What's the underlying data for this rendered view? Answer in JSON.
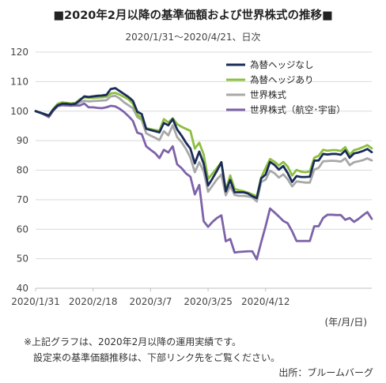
{
  "title": "■2020年2月以降の基準価額および世界株式の推移■",
  "subtitle": "2020/1/31～2020/4/21、日次",
  "x_unit": "(年/月/日)",
  "notes": [
    "※上記グラフは、2020年2月以降の運用実績です。",
    "設定来の基準価額推移は、下部リンク先をご覧ください。"
  ],
  "source": "出所：ブルームバーグ",
  "chart_data": {
    "type": "line",
    "ylim": [
      40,
      120
    ],
    "yticks": [
      40,
      50,
      60,
      70,
      80,
      90,
      100,
      110,
      120
    ],
    "xticks": [
      "2020/1/31",
      "2020/2/18",
      "2020/3/7",
      "2020/3/25",
      "2020/4/12"
    ],
    "grid": true,
    "legend_position": "top-right",
    "series": [
      {
        "name": "為替ヘッジなし",
        "color": "#1a2b57",
        "values": [
          100,
          99.5,
          99,
          98.5,
          100.5,
          102,
          102.5,
          102.5,
          102.3,
          102.5,
          103.7,
          105,
          104.8,
          105,
          105.2,
          105.3,
          105.5,
          107.5,
          107.8,
          106.8,
          105.8,
          104.8,
          103.5,
          99.8,
          99,
          94,
          93.6,
          93.2,
          92.8,
          96,
          95.2,
          97.3,
          93.8,
          91.7,
          89.3,
          87.3,
          82.3,
          86.3,
          82.2,
          74.8,
          77.2,
          79.8,
          82.7,
          72.8,
          76.7,
          72.5,
          72.5,
          72.5,
          72.1,
          71.2,
          70.5,
          77.2,
          78.5,
          82.8,
          81.8,
          80.2,
          81.4,
          79,
          76,
          78,
          77.7,
          77.7,
          77.8,
          83.2,
          83.3,
          85.5,
          85.3,
          85.5,
          85.5,
          85.2,
          86.7,
          84.2,
          85.7,
          86,
          86.5,
          87.2,
          86.1
        ]
      },
      {
        "name": "為替ヘッジあり",
        "color": "#8cbf3f",
        "values": [
          100,
          99.5,
          99,
          98.5,
          100.8,
          102.5,
          103,
          102.8,
          102.6,
          102.8,
          104,
          104.7,
          104.5,
          104.5,
          104.6,
          104.7,
          104.9,
          106,
          106.2,
          105.6,
          104.8,
          104,
          102.5,
          98.8,
          97.7,
          94.2,
          93.9,
          93.6,
          93.4,
          97.3,
          96.2,
          97.6,
          95.6,
          94.7,
          94,
          93.3,
          87.3,
          89.3,
          85.3,
          77,
          78.9,
          80.7,
          82.7,
          73.2,
          78.2,
          73.6,
          73.2,
          72.9,
          72.4,
          71.8,
          71.1,
          77.5,
          80.7,
          83.8,
          82.9,
          81.6,
          82.8,
          81.2,
          78.2,
          80.1,
          79.5,
          79.3,
          79.6,
          84.2,
          84.9,
          86.9,
          86.6,
          86.8,
          86.8,
          86.5,
          87.8,
          85.2,
          86.8,
          87.2,
          87.8,
          88.5,
          87.4
        ]
      },
      {
        "name": "世界株式",
        "color": "#a8a8a8",
        "values": [
          100,
          99.5,
          99,
          98.5,
          100.6,
          101.8,
          102.2,
          102,
          101.8,
          102,
          103,
          103.5,
          103.3,
          103.4,
          103.5,
          103.6,
          103.7,
          105,
          105.2,
          104.3,
          103,
          102,
          101,
          98,
          97,
          92.5,
          91.7,
          91,
          90.2,
          93.2,
          91.8,
          95.2,
          91.2,
          89.5,
          87.2,
          84.3,
          79.3,
          82.7,
          79.6,
          72.7,
          74.8,
          76.9,
          78.5,
          71.5,
          74.6,
          71.6,
          71.3,
          71.3,
          71.1,
          70.8,
          69.4,
          76,
          76.8,
          79.8,
          79,
          77.5,
          78.6,
          76.9,
          74.5,
          76.2,
          76,
          75.8,
          75.8,
          80.2,
          80.8,
          83,
          83.1,
          83.2,
          83.1,
          82.9,
          84,
          81.7,
          82.7,
          83,
          83.4,
          84,
          83.3
        ]
      },
      {
        "name": "世界株式（航空･宇宙）",
        "color": "#7d63a8",
        "values": [
          100,
          99.5,
          98.8,
          98,
          100.2,
          101.7,
          102,
          101.9,
          101.9,
          101.9,
          101.9,
          102.6,
          101.3,
          101.3,
          101.1,
          101,
          101.3,
          101.8,
          101.6,
          100.8,
          99.7,
          98.3,
          96.7,
          92.7,
          92.2,
          88.1,
          86.9,
          85.8,
          84.1,
          86.9,
          86,
          88.1,
          82,
          80.7,
          78.9,
          77.8,
          71.8,
          75,
          62.7,
          60.8,
          62.5,
          63.8,
          64.7,
          55.9,
          56.7,
          52.1,
          52.3,
          52.4,
          52.5,
          52.5,
          49.8,
          55.6,
          61,
          67,
          65.7,
          64.3,
          62.8,
          62,
          59.3,
          56,
          56,
          56,
          56,
          61,
          61,
          63.8,
          64.9,
          64.9,
          64.8,
          64.8,
          63.2,
          63.8,
          62.5,
          63.5,
          64.7,
          65.8,
          63.5
        ]
      }
    ]
  }
}
